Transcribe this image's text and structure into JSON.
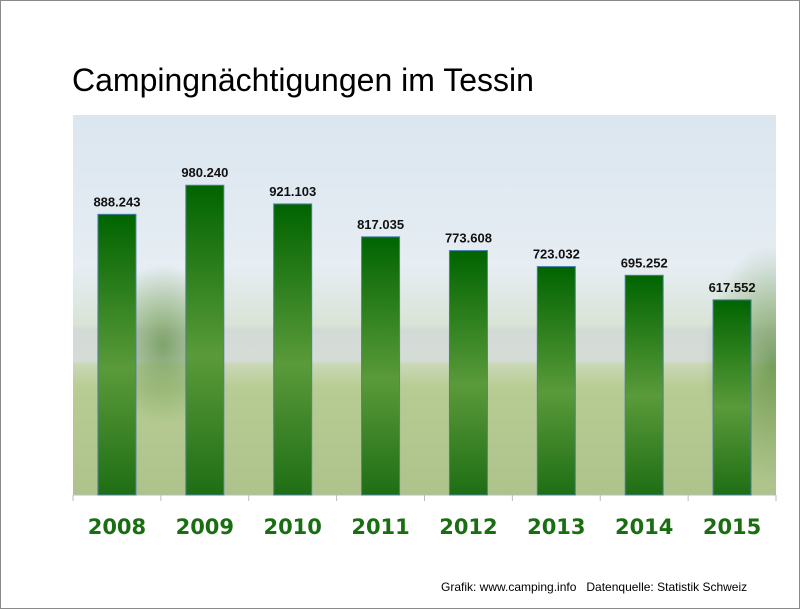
{
  "chart_data": {
    "type": "bar",
    "title": "Campingnächtigungen im Tessin",
    "categories": [
      "2008",
      "2009",
      "2010",
      "2011",
      "2012",
      "2013",
      "2014",
      "2015"
    ],
    "values": [
      888243,
      980240,
      921103,
      817035,
      773608,
      723032,
      695252,
      617552
    ],
    "value_labels": [
      "888.243",
      "980.240",
      "921.103",
      "817.035",
      "773.608",
      "723.032",
      "695.252",
      "617.552"
    ],
    "xlabel": "",
    "ylabel": "",
    "ylim": [
      0,
      1000000
    ],
    "grid": false,
    "colors": {
      "bar_dark": "#006400",
      "bar_light": "#5a9a3a",
      "category_text": "#1a6e12"
    }
  },
  "footer": "Grafik: www.camping.info   Datenquelle: Statistik Schweiz"
}
